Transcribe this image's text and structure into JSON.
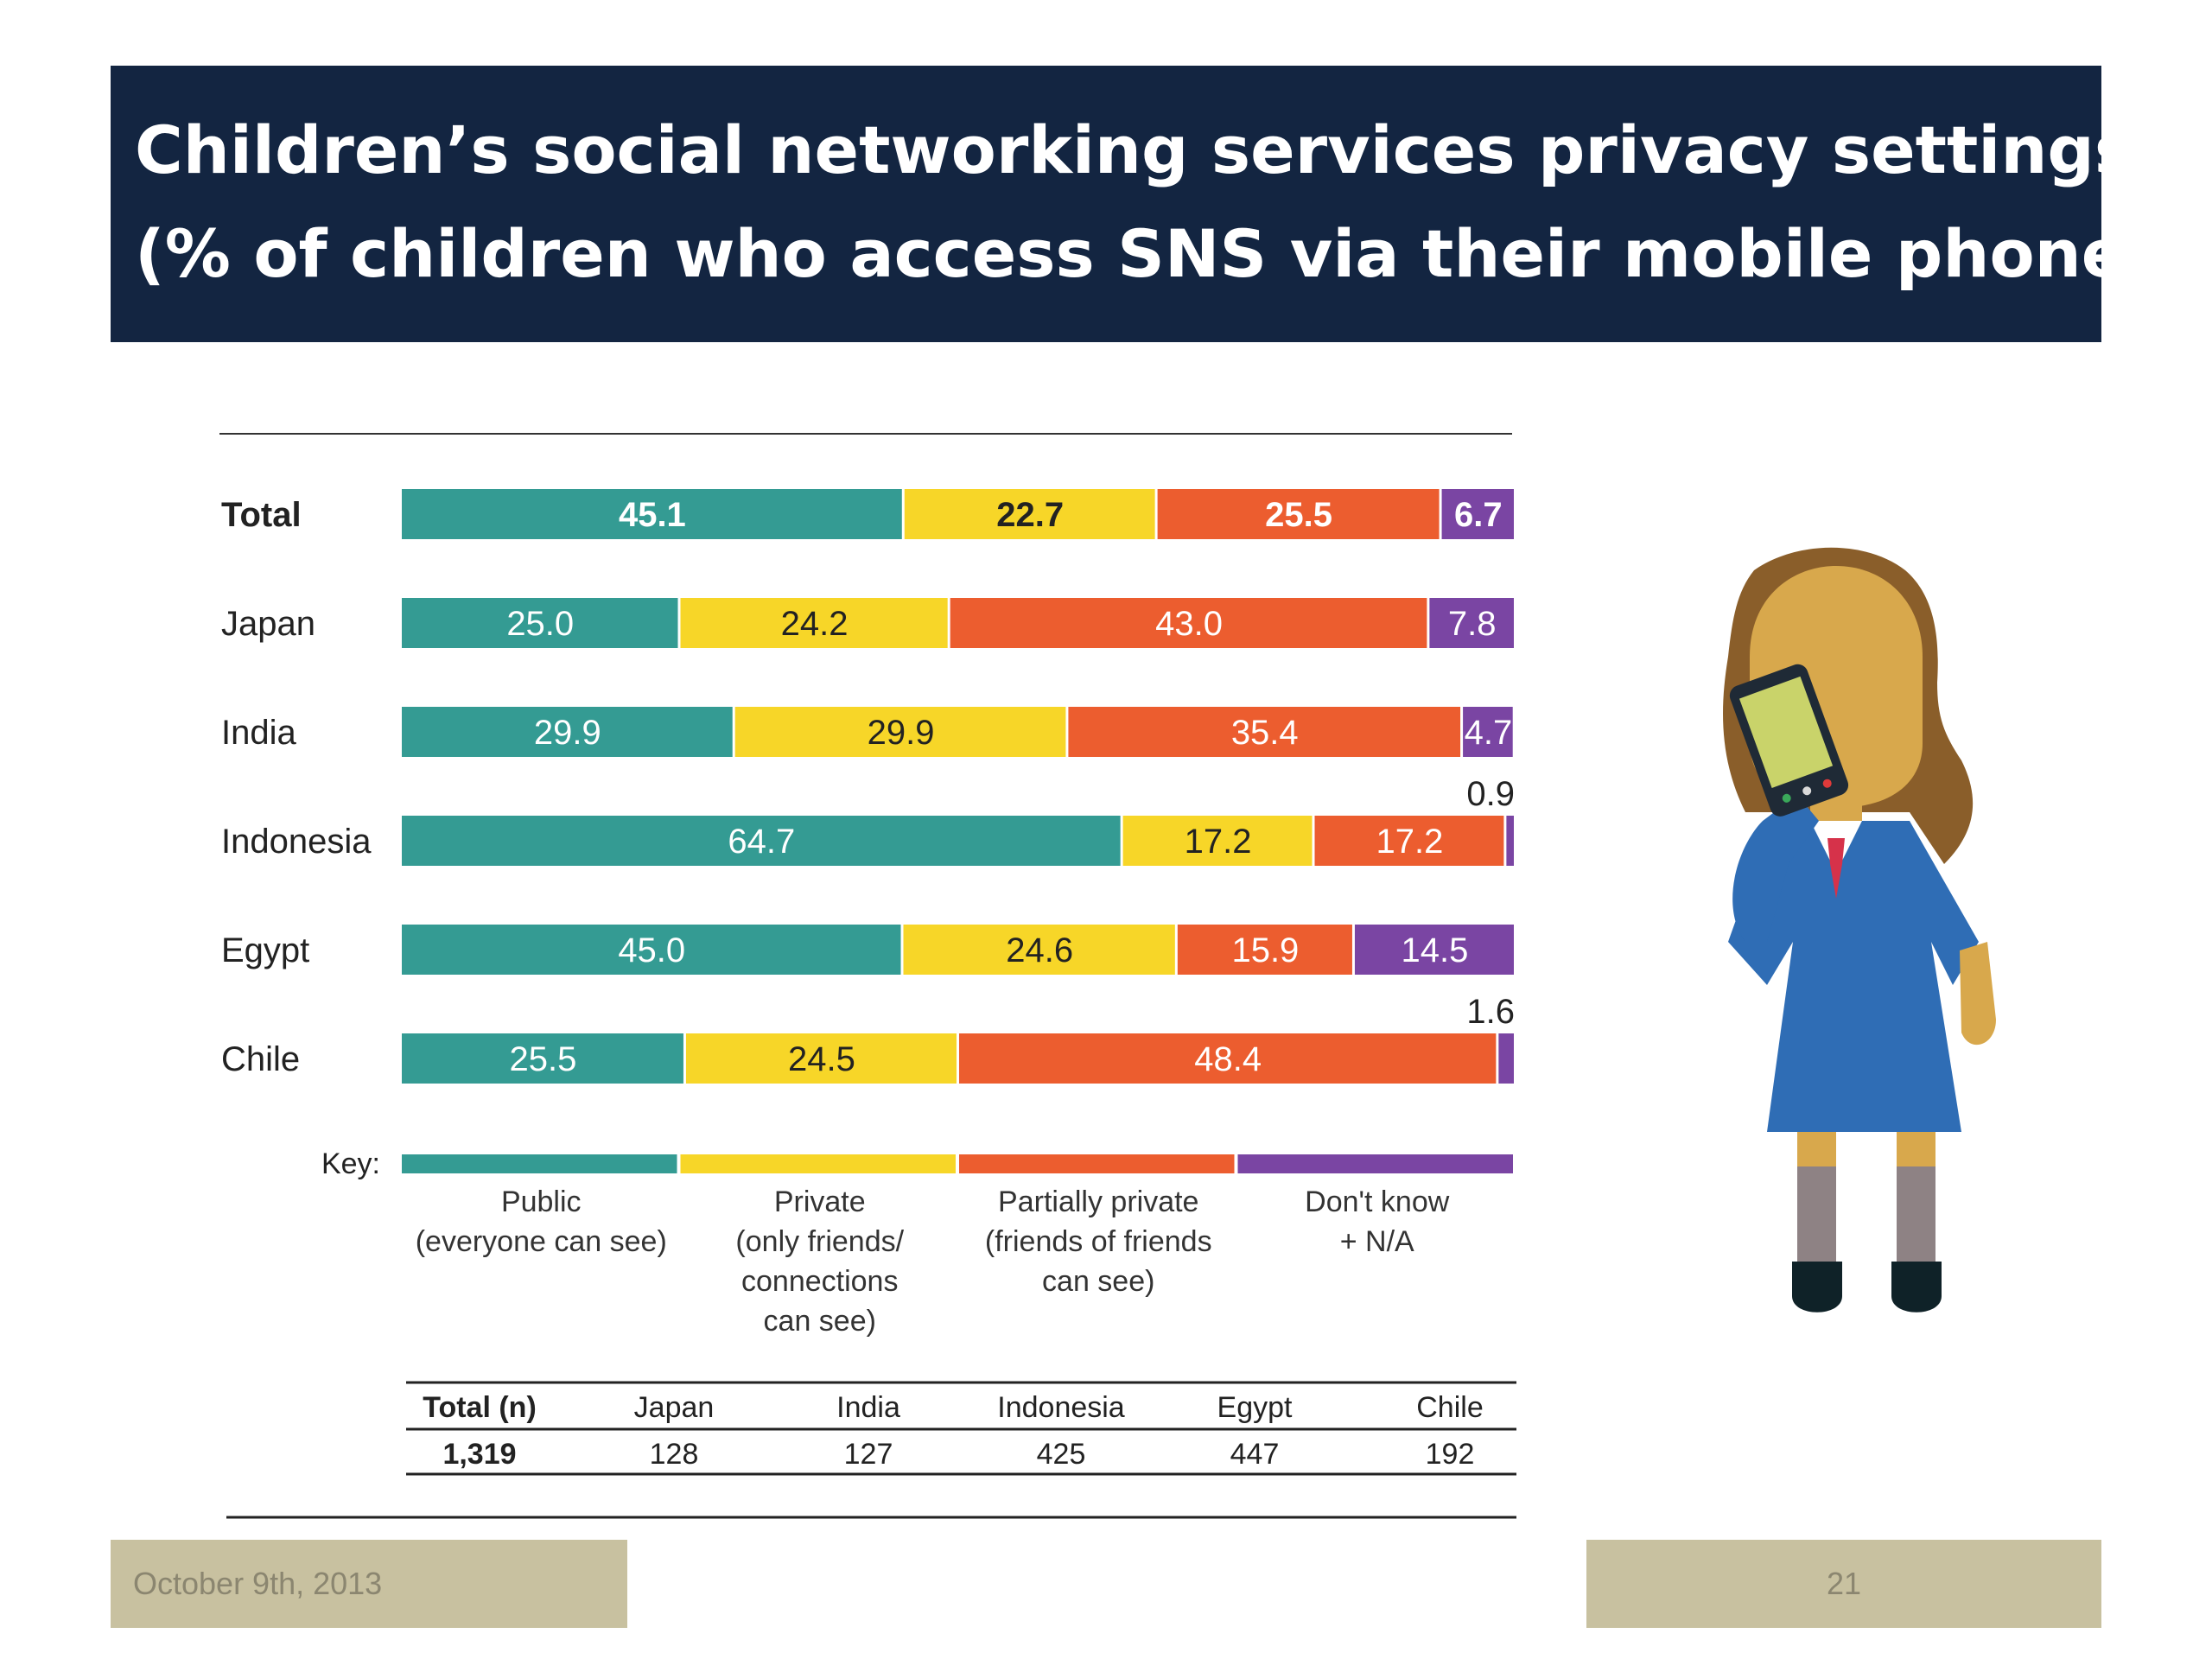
{
  "title": {
    "line1": "Children’s social networking services privacy settings",
    "line2": "(% of children who access SNS via their mobile phone)"
  },
  "chart_data": {
    "type": "bar",
    "stacked": true,
    "orientation": "horizontal",
    "categories": [
      "Total",
      "Japan",
      "India",
      "Indonesia",
      "Egypt",
      "Chile"
    ],
    "series": [
      {
        "name": "Public (everyone can see)",
        "color": "#349b93",
        "values": [
          45.1,
          25.0,
          29.9,
          64.7,
          45.0,
          25.5
        ]
      },
      {
        "name": "Private (only friends/ connections can see)",
        "color": "#f7d628",
        "values": [
          22.7,
          24.2,
          29.9,
          17.2,
          24.6,
          24.5
        ]
      },
      {
        "name": "Partially private (friends of friends can see)",
        "color": "#ec5d2f",
        "values": [
          25.5,
          43.0,
          35.4,
          17.2,
          15.9,
          48.4
        ]
      },
      {
        "name": "Don't know + N/A",
        "color": "#7a45a3",
        "values": [
          6.7,
          7.8,
          4.7,
          0.9,
          14.5,
          1.6
        ]
      }
    ],
    "value_labels": [
      [
        "45.1",
        "22.7",
        "25.5",
        "6.7"
      ],
      [
        "25.0",
        "24.2",
        "43.0",
        "7.8"
      ],
      [
        "29.9",
        "29.9",
        "35.4",
        "4.7"
      ],
      [
        "64.7",
        "17.2",
        "17.2",
        "0.9"
      ],
      [
        "45.0",
        "24.6",
        "15.9",
        "14.5"
      ],
      [
        "25.5",
        "24.5",
        "48.4",
        "1.6"
      ]
    ],
    "xlim": [
      0,
      100
    ],
    "key_label": "Key:",
    "key_items": [
      {
        "lines": [
          "Public",
          "(everyone can see)"
        ]
      },
      {
        "lines": [
          "Private",
          "(only friends/",
          "connections",
          "can see)"
        ]
      },
      {
        "lines": [
          "Partially private",
          "(friends of friends",
          "can see)"
        ]
      },
      {
        "lines": [
          "Don't know",
          "+ N/A"
        ]
      }
    ],
    "sample_table": {
      "headers": [
        "Total (n)",
        "Japan",
        "India",
        "Indonesia",
        "Egypt",
        "Chile"
      ],
      "values": [
        "1,319",
        "128",
        "127",
        "425",
        "447",
        "192"
      ]
    },
    "legend": "bottom"
  },
  "footer": {
    "date": "October 9th, 2013",
    "page": "21"
  },
  "colors": {
    "title_bg": "#132541",
    "footer_bg": "#c8c1a0",
    "footer_text": "#8b8670"
  },
  "illustration": {
    "icon": "girl-on-phone-icon"
  }
}
